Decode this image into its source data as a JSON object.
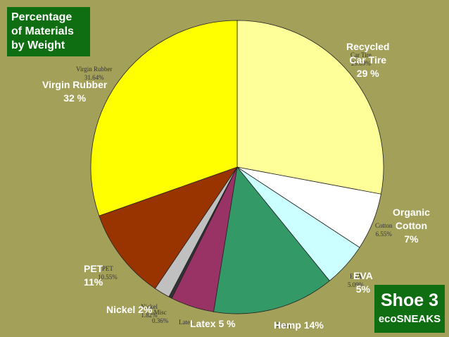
{
  "title": "Percentage\nof Materials\nby Weight",
  "badge": {
    "title": "Shoe 3",
    "subtitle": "ecoSNEAKS"
  },
  "colors": {
    "background": "#a3a05a",
    "box": "#0f6d12"
  },
  "chart_data": {
    "type": "pie",
    "title": "Percentage of Materials by Weight",
    "series": [
      {
        "name": "Recycled Car Tire",
        "value": 29.09,
        "color": "#ffff99"
      },
      {
        "name": "Cotton",
        "value": 6.55,
        "color": "#ffffff"
      },
      {
        "name": "EVA",
        "value": 5.09,
        "color": "#ccffff"
      },
      {
        "name": "Hemp",
        "value": 14.0,
        "color": "#339966"
      },
      {
        "name": "Latex",
        "value": 5.0,
        "color": "#993366"
      },
      {
        "name": "Misc",
        "value": 0.36,
        "color": "#333333"
      },
      {
        "name": "Nickel",
        "value": 1.82,
        "color": "#c0c0c0"
      },
      {
        "name": "PET",
        "value": 10.55,
        "color": "#993300"
      },
      {
        "name": "Virgin Rubber",
        "value": 31.64,
        "color": "#ffff00"
      }
    ]
  },
  "labels": {
    "recycled": {
      "line1": "Recycled",
      "line2": "Car Tire",
      "pct": "29 %"
    },
    "organic": {
      "line1": "Organic",
      "line2": "Cotton",
      "pct": "7%"
    },
    "eva": {
      "name": "EVA",
      "pct": "5%"
    },
    "hemp": "Hemp 14%",
    "latex": "Latex 5 %",
    "nickel": "Nickel 2%",
    "pet": {
      "name": "PET",
      "pct": "11%"
    },
    "virgin": {
      "name": "Virgin Rubber",
      "pct": "32 %"
    }
  },
  "data_labels": {
    "car_tire": {
      "name": "Car Tire",
      "pct": "29.09%"
    },
    "cotton": {
      "name": "Cotton",
      "pct": "6.55%"
    },
    "eva": {
      "name": "EVA",
      "pct": "5.09%"
    },
    "hemp": {
      "name": "Hemp"
    },
    "latex": {
      "name": "Latex"
    },
    "misc": {
      "name": "Misc",
      "pct": "0.36%"
    },
    "nickel": {
      "name": "Nickel",
      "pct": "1.82%"
    },
    "pet": {
      "name": "PET",
      "pct": "10.55%"
    },
    "virgin": {
      "name": "Virgin Rubber",
      "pct": "31.64%"
    }
  }
}
